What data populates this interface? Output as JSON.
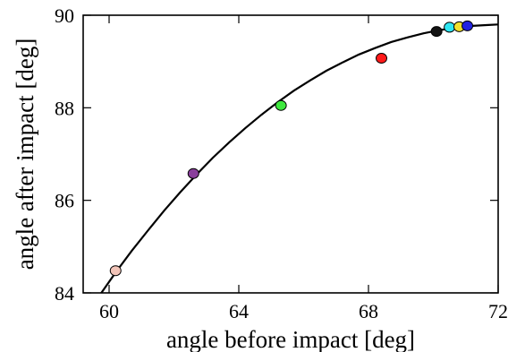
{
  "chart_data": {
    "type": "scatter",
    "title": "",
    "xlabel": "angle before impact [deg]",
    "ylabel": "angle after impact [deg]",
    "xlim": [
      59.2,
      72
    ],
    "ylim": [
      84,
      90
    ],
    "x_ticks": [
      60,
      64,
      68,
      72
    ],
    "y_ticks": [
      84,
      86,
      88,
      90
    ],
    "grid": false,
    "legend": "none",
    "curve": {
      "color": "#000000",
      "x": [
        59.7,
        60.2,
        60.7,
        61.2,
        61.7,
        62.2,
        62.7,
        63.2,
        63.7,
        64.2,
        64.7,
        65.2,
        65.7,
        66.2,
        66.7,
        67.2,
        67.7,
        68.2,
        68.7,
        69.2,
        69.7,
        70.2,
        70.7,
        71.2,
        71.7,
        72.0
      ],
      "y": [
        83.94,
        84.44,
        84.91,
        85.35,
        85.78,
        86.18,
        86.56,
        86.92,
        87.25,
        87.56,
        87.85,
        88.12,
        88.37,
        88.59,
        88.8,
        88.98,
        89.15,
        89.29,
        89.42,
        89.52,
        89.61,
        89.68,
        89.73,
        89.77,
        89.79,
        89.8
      ]
    },
    "points": [
      {
        "x": 60.2,
        "y": 84.48,
        "color": "#f2c4b8"
      },
      {
        "x": 62.6,
        "y": 86.58,
        "color": "#8a3f9c"
      },
      {
        "x": 65.3,
        "y": 88.05,
        "color": "#3ee83e"
      },
      {
        "x": 68.4,
        "y": 89.07,
        "color": "#ff1a1a"
      },
      {
        "x": 70.1,
        "y": 89.65,
        "color": "#141414"
      },
      {
        "x": 70.5,
        "y": 89.74,
        "color": "#2ee6f2"
      },
      {
        "x": 70.8,
        "y": 89.75,
        "color": "#f2e02e"
      },
      {
        "x": 71.05,
        "y": 89.77,
        "color": "#2222e0"
      }
    ]
  }
}
